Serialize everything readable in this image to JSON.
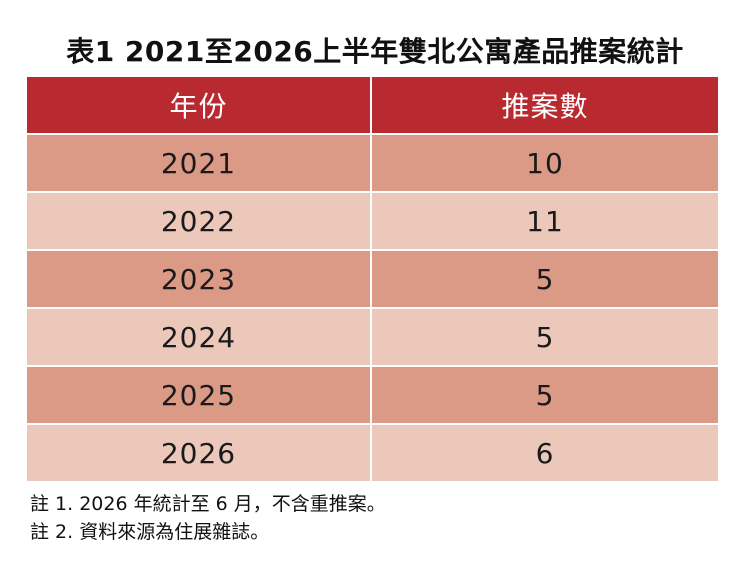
{
  "title": "表1 2021至2026上半年雙北公寓產品推案統計",
  "table": {
    "headers": [
      "年份",
      "推案數"
    ],
    "rows": [
      {
        "year": "2021",
        "count": "10"
      },
      {
        "year": "2022",
        "count": "11"
      },
      {
        "year": "2023",
        "count": "5"
      },
      {
        "year": "2024",
        "count": "5"
      },
      {
        "year": "2025",
        "count": "5"
      },
      {
        "year": "2026",
        "count": "6"
      }
    ]
  },
  "notes": [
    "註 1. 2026 年統計至 6 月，不含重推案。",
    "註 2. 資料來源為住展雜誌。"
  ],
  "colors": {
    "header": "#b82a30",
    "row_dark": "#da9a86",
    "row_light": "#ecc8bb"
  }
}
